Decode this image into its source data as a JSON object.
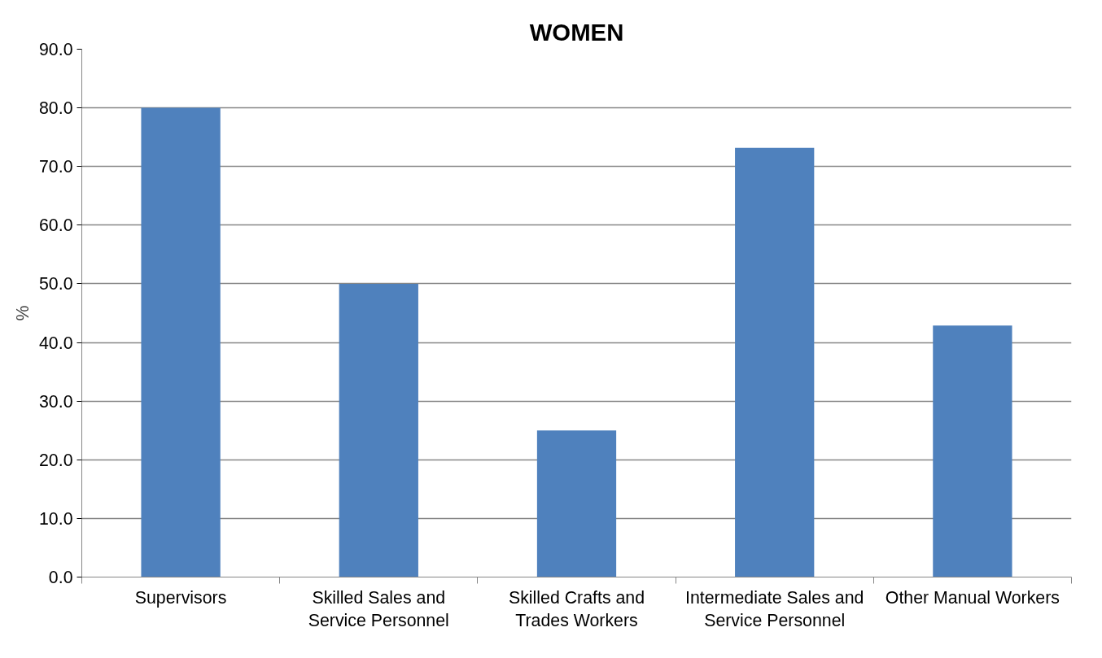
{
  "chart_data": {
    "type": "bar",
    "title": "WOMEN",
    "ylabel": "%",
    "categories": [
      "Supervisors",
      "Skilled Sales and Service Personnel",
      "Skilled Crafts and Trades Workers",
      "Intermediate Sales and Service Personnel",
      "Other Manual Workers"
    ],
    "values": [
      80.0,
      50.0,
      25.0,
      73.2,
      42.9
    ],
    "color": "#4f81bd",
    "ylim": [
      0,
      90
    ],
    "yticks": [
      {
        "value": 0,
        "label": "0.0"
      },
      {
        "value": 10,
        "label": "10.0"
      },
      {
        "value": 20,
        "label": "20.0"
      },
      {
        "value": 30,
        "label": "30.0"
      },
      {
        "value": 40,
        "label": "40.0"
      },
      {
        "value": 50,
        "label": "50.0"
      },
      {
        "value": 60,
        "label": "60.0"
      },
      {
        "value": 70,
        "label": "70.0"
      },
      {
        "value": 80,
        "label": "80.0"
      },
      {
        "value": 90,
        "label": "90.0"
      }
    ],
    "grid": "y"
  }
}
